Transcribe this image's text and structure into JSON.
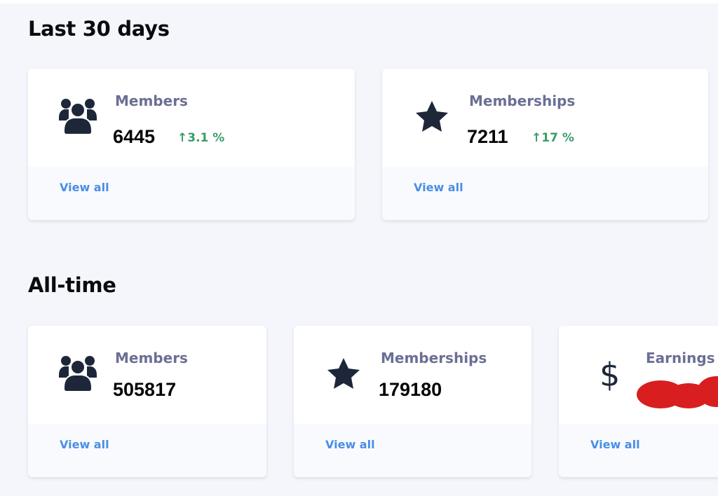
{
  "sections": [
    {
      "title": "Last 30 days",
      "cards": [
        {
          "label": "Members",
          "value": "6445",
          "change": "↑3.1 %",
          "icon": "users-icon",
          "link": "View all"
        },
        {
          "label": "Memberships",
          "value": "7211",
          "change": "↑17 %",
          "icon": "star-icon",
          "link": "View all"
        }
      ]
    },
    {
      "title": "All-time",
      "cards": [
        {
          "label": "Members",
          "value": "505817",
          "icon": "users-icon",
          "link": "View all"
        },
        {
          "label": "Memberships",
          "value": "179180",
          "icon": "star-icon",
          "link": "View all"
        },
        {
          "label": "Earnings",
          "icon": "dollar-icon",
          "link": "View all",
          "value_redacted": true
        }
      ]
    }
  ],
  "colors": {
    "background": "#f5f6fb",
    "label": "#6b6f94",
    "positive": "#3a9d6a",
    "link": "#4a8ee6",
    "icon": "#1e273a",
    "redaction": "#d81e1e"
  }
}
